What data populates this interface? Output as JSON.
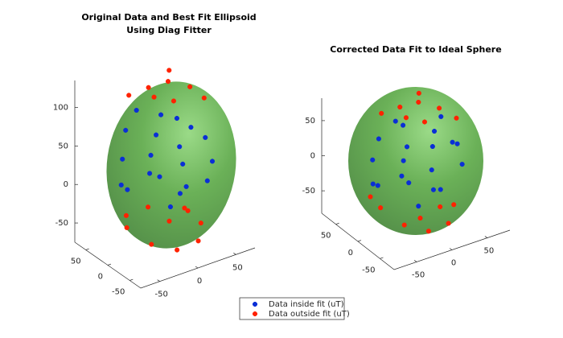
{
  "chart_data": [
    {
      "type": "scatter3d",
      "title": [
        "Original Data and Best Fit Ellipsoid",
        "Using Diag Fitter"
      ],
      "xlim": [
        -75,
        75
      ],
      "ylim": [
        -75,
        75
      ],
      "zlim": [
        -75,
        135
      ],
      "xticks": [
        -50,
        0,
        50
      ],
      "yticks": [
        -50,
        0,
        50
      ],
      "zticks": [
        -50,
        0,
        50,
        100
      ],
      "series": [
        {
          "name": "Data inside fit (uT)",
          "color": "#0a2fd6",
          "x": [
            -40,
            -20,
            10,
            30,
            -50,
            -30,
            0,
            25,
            45,
            -55,
            -20,
            5,
            35,
            -40,
            -10,
            20,
            50,
            -30,
            15,
            40
          ],
          "y": [
            20,
            30,
            -10,
            -40,
            10,
            -20,
            20,
            10,
            -30,
            -10,
            0,
            -40,
            20,
            30,
            -30,
            0,
            -10,
            -40,
            35,
            10
          ],
          "z": [
            80,
            95,
            90,
            70,
            50,
            60,
            60,
            40,
            30,
            20,
            25,
            15,
            10,
            5,
            -10,
            -15,
            -5,
            40,
            75,
            60
          ]
        },
        {
          "name": "Data outside fit (uT)",
          "color": "#ff2200",
          "x": [
            -10,
            10,
            30,
            -30,
            0,
            20,
            40,
            -20,
            -50,
            -35,
            -10,
            15,
            30,
            -45,
            0,
            20,
            -25,
            10
          ],
          "y": [
            20,
            10,
            -5,
            30,
            -20,
            25,
            -20,
            -10,
            0,
            -30,
            -45,
            -50,
            -30,
            10,
            -10,
            -10,
            -5,
            -35
          ],
          "z": [
            125,
            130,
            122,
            118,
            120,
            135,
            110,
            128,
            -35,
            -50,
            -60,
            -55,
            -45,
            -25,
            -40,
            -30,
            -15,
            -20
          ]
        }
      ]
    },
    {
      "type": "scatter3d",
      "title": [
        "Corrected Data Fit to Ideal Sphere"
      ],
      "xlim": [
        -82,
        82
      ],
      "ylim": [
        -82,
        82
      ],
      "zlim": [
        -82,
        82
      ],
      "xticks": [
        -50,
        0,
        50
      ],
      "yticks": [
        -50,
        0,
        50
      ],
      "zticks": [
        -50,
        0,
        50
      ],
      "series": [
        {
          "name": "Data inside fit (uT)",
          "color": "#0a2fd6",
          "x": [
            -40,
            -10,
            20,
            40,
            -55,
            -30,
            0,
            30,
            50,
            -60,
            -20,
            10,
            35,
            -45,
            -15,
            25,
            55,
            -35,
            10,
            45
          ],
          "y": [
            20,
            30,
            -10,
            -30,
            10,
            -20,
            20,
            10,
            -25,
            -10,
            0,
            -40,
            20,
            25,
            -30,
            0,
            5,
            -40,
            45,
            15
          ],
          "z": [
            40,
            50,
            45,
            30,
            20,
            25,
            15,
            10,
            -5,
            -5,
            -10,
            -20,
            -30,
            -25,
            -40,
            -45,
            10,
            5,
            30,
            45
          ]
        },
        {
          "name": "Data outside fit (uT)",
          "color": "#ff2200",
          "x": [
            -10,
            10,
            30,
            -30,
            0,
            20,
            45,
            -20,
            -50,
            -35,
            -10,
            15,
            35,
            -55,
            0,
            25
          ],
          "y": [
            20,
            10,
            -5,
            30,
            -20,
            25,
            -20,
            -10,
            0,
            -30,
            -45,
            -50,
            -30,
            15,
            -10,
            -15
          ],
          "z": [
            75,
            80,
            72,
            68,
            70,
            82,
            60,
            78,
            -45,
            -60,
            -70,
            -65,
            -55,
            -35,
            -72,
            -62
          ]
        }
      ]
    }
  ]
}
